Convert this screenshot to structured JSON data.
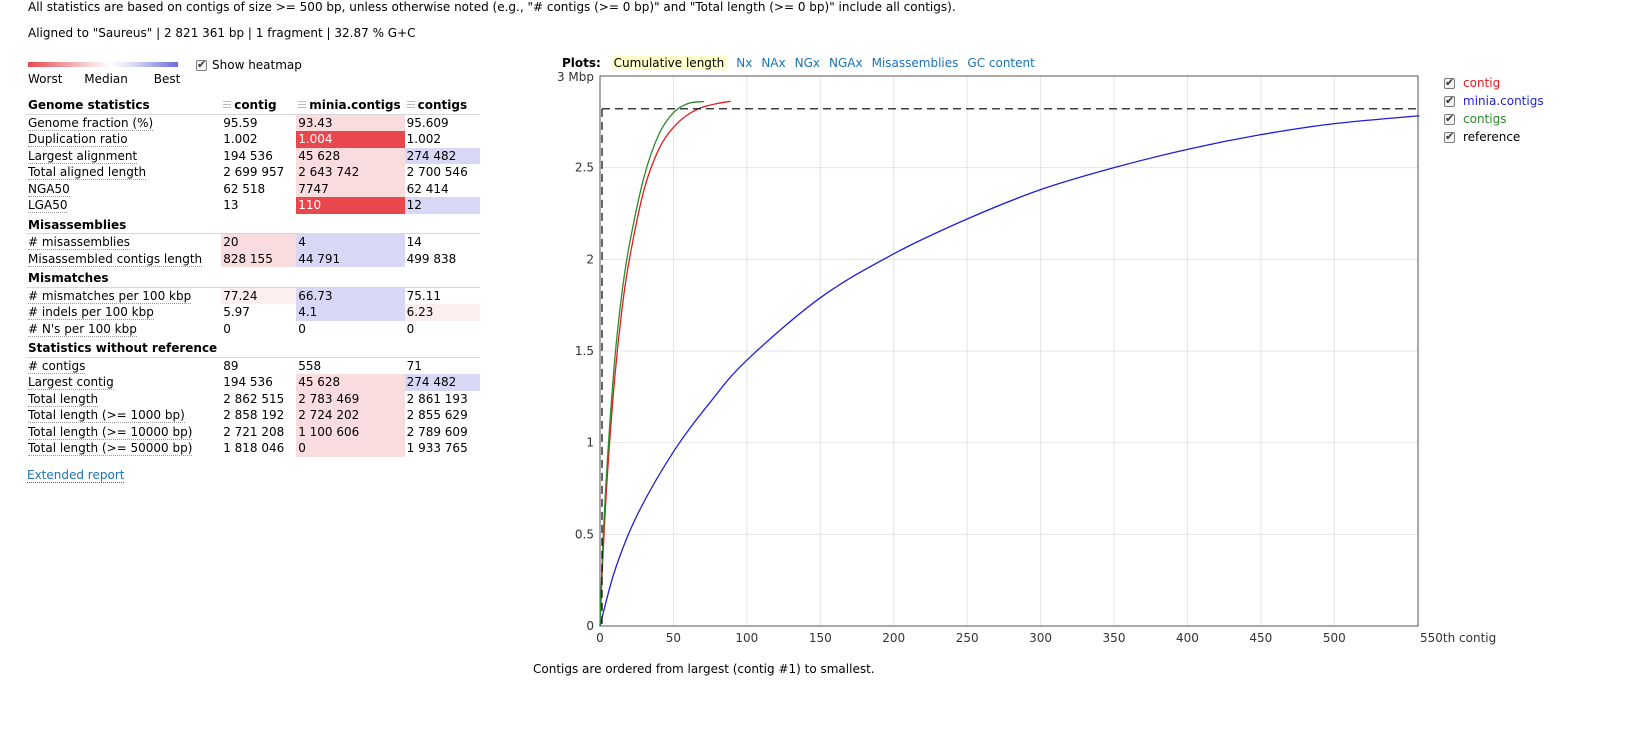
{
  "header": {
    "note": "All statistics are based on contigs of size >= 500 bp, unless otherwise noted (e.g., \"# contigs (>= 0 bp)\" and \"Total length (>= 0 bp)\" include all contigs).",
    "aligned": "Aligned to \"Saureus\" | 2 821 361 bp | 1 fragment | 32.87 % G+C"
  },
  "heatmap": {
    "worst": "Worst",
    "median": "Median",
    "best": "Best",
    "toggle_label": "Show heatmap",
    "checked": true
  },
  "table": {
    "columns": [
      "contig",
      "minia.contigs",
      "contigs"
    ],
    "groups": [
      {
        "title": "Genome statistics",
        "rows": [
          {
            "label": "Genome fraction (%)",
            "values": [
              "95.59",
              "93.43",
              "95.609"
            ],
            "heat": [
              "",
              "bad2",
              ""
            ]
          },
          {
            "label": "Duplication ratio",
            "values": [
              "1.002",
              "1.004",
              "1.002"
            ],
            "heat": [
              "",
              "bad1",
              ""
            ]
          },
          {
            "label": "Largest alignment",
            "values": [
              "194 536",
              "45 628",
              "274 482"
            ],
            "heat": [
              "",
              "bad2",
              "good"
            ]
          },
          {
            "label": "Total aligned length",
            "values": [
              "2 699 957",
              "2 643 742",
              "2 700 546"
            ],
            "heat": [
              "",
              "bad2",
              ""
            ]
          },
          {
            "label": "NGA50",
            "values": [
              "62 518",
              "7747",
              "62 414"
            ],
            "heat": [
              "",
              "bad2",
              ""
            ]
          },
          {
            "label": "LGA50",
            "values": [
              "13",
              "110",
              "12"
            ],
            "heat": [
              "",
              "bad1",
              "good"
            ]
          }
        ]
      },
      {
        "title": "Misassemblies",
        "rows": [
          {
            "label": "# misassemblies",
            "values": [
              "20",
              "4",
              "14"
            ],
            "heat": [
              "bad2",
              "good",
              ""
            ]
          },
          {
            "label": "Misassembled contigs length",
            "values": [
              "828 155",
              "44 791",
              "499 838"
            ],
            "heat": [
              "bad2",
              "good",
              ""
            ]
          }
        ]
      },
      {
        "title": "Mismatches",
        "rows": [
          {
            "label": "# mismatches per 100 kbp",
            "values": [
              "77.24",
              "66.73",
              "75.11"
            ],
            "heat": [
              "faint",
              "good",
              ""
            ]
          },
          {
            "label": "# indels per 100 kbp",
            "values": [
              "5.97",
              "4.1",
              "6.23"
            ],
            "heat": [
              "",
              "good",
              "faint"
            ]
          },
          {
            "label": "# N's per 100 kbp",
            "values": [
              "0",
              "0",
              "0"
            ],
            "heat": [
              "",
              "",
              ""
            ]
          }
        ]
      },
      {
        "title": "Statistics without reference",
        "rows": [
          {
            "label": "# contigs",
            "values": [
              "89",
              "558",
              "71"
            ],
            "heat": [
              "",
              "",
              ""
            ]
          },
          {
            "label": "Largest contig",
            "values": [
              "194 536",
              "45 628",
              "274 482"
            ],
            "heat": [
              "",
              "bad2",
              "good"
            ]
          },
          {
            "label": "Total length",
            "values": [
              "2 862 515",
              "2 783 469",
              "2 861 193"
            ],
            "heat": [
              "",
              "bad2",
              ""
            ]
          },
          {
            "label": "Total length (>= 1000 bp)",
            "values": [
              "2 858 192",
              "2 724 202",
              "2 855 629"
            ],
            "heat": [
              "",
              "bad2",
              ""
            ]
          },
          {
            "label": "Total length (>= 10000 bp)",
            "values": [
              "2 721 208",
              "1 100 606",
              "2 789 609"
            ],
            "heat": [
              "",
              "bad2",
              ""
            ]
          },
          {
            "label": "Total length (>= 50000 bp)",
            "values": [
              "1 818 046",
              "0",
              "1 933 765"
            ],
            "heat": [
              "",
              "bad2",
              ""
            ]
          }
        ]
      }
    ],
    "extended_report": "Extended report"
  },
  "plots": {
    "title": "Plots:",
    "tabs": [
      "Cumulative length",
      "Nx",
      "NAx",
      "NGx",
      "NGAx",
      "Misassemblies",
      "GC content"
    ],
    "active_tab": "Cumulative length",
    "footnote": "Contigs are ordered from largest (contig #1) to smallest."
  },
  "chart_data": {
    "type": "line",
    "ylabel_top": "3 Mbp",
    "xlabel_end": "550th contig",
    "xlim": [
      0,
      557
    ],
    "ylim": [
      0,
      3
    ],
    "xticks": [
      0,
      50,
      100,
      150,
      200,
      250,
      300,
      350,
      400,
      450,
      500
    ],
    "yticks": [
      0,
      0.5,
      1,
      1.5,
      2,
      2.5
    ],
    "grid": true,
    "legend_position": "right",
    "series": [
      {
        "name": "contig",
        "color": "#e41a1c",
        "x": [
          0,
          2,
          5,
          10,
          15,
          20,
          30,
          40,
          50,
          60,
          70,
          80,
          89
        ],
        "y": [
          0,
          0.38,
          0.82,
          1.35,
          1.73,
          2.0,
          2.38,
          2.6,
          2.72,
          2.79,
          2.83,
          2.85,
          2.862
        ]
      },
      {
        "name": "minia.contigs",
        "color": "#1f1fd6",
        "x": [
          0,
          10,
          25,
          50,
          75,
          100,
          150,
          200,
          250,
          300,
          350,
          400,
          450,
          500,
          558
        ],
        "y": [
          0,
          0.3,
          0.6,
          0.95,
          1.22,
          1.45,
          1.79,
          2.03,
          2.22,
          2.38,
          2.5,
          2.6,
          2.68,
          2.74,
          2.783
        ]
      },
      {
        "name": "contigs",
        "color": "#2a8a2a",
        "x": [
          0,
          2,
          5,
          10,
          15,
          20,
          30,
          40,
          50,
          60,
          71
        ],
        "y": [
          0,
          0.45,
          0.9,
          1.45,
          1.82,
          2.08,
          2.45,
          2.68,
          2.8,
          2.85,
          2.861
        ]
      },
      {
        "name": "reference",
        "color": "#000000",
        "dashed": true,
        "x": [
          0,
          557
        ],
        "y": [
          2.821,
          2.821
        ]
      }
    ]
  }
}
